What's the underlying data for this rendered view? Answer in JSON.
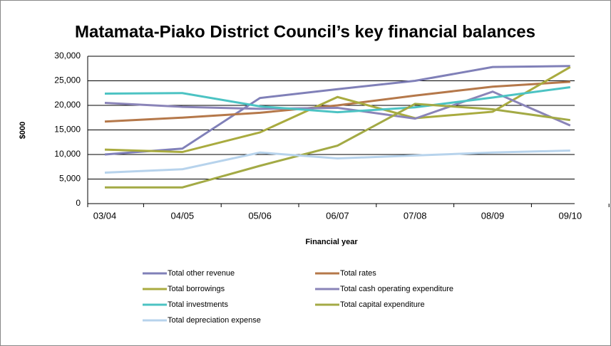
{
  "chart_data": {
    "type": "line",
    "title": "Matamata-Piako District Council’s key financial balances",
    "x_label": "Financial year",
    "y_label": "$000",
    "categories": [
      "03/04",
      "04/05",
      "05/06",
      "06/07",
      "07/08",
      "08/09",
      "09/10"
    ],
    "ylim": [
      0,
      30000
    ],
    "yticks": [
      0,
      {
        "value": 5000,
        "label": "5,000"
      },
      {
        "value": 10000,
        "label": "10,000"
      },
      {
        "value": 15000,
        "label": "15,000"
      },
      {
        "value": 20000,
        "label": "20,000"
      },
      {
        "value": 25000,
        "label": "25,000"
      },
      {
        "value": 30000,
        "label": "30,000"
      }
    ],
    "grid": true,
    "series": [
      {
        "name": "Total other revenue",
        "color": "#8080b8",
        "values": [
          10000,
          11200,
          21500,
          23300,
          25000,
          27800,
          28000
        ]
      },
      {
        "name": "Total rates",
        "color": "#b5784a",
        "values": [
          16700,
          17500,
          18500,
          20000,
          22000,
          23800,
          24800
        ]
      },
      {
        "name": "Total borrowings",
        "color": "#a9ab3f",
        "values": [
          11000,
          10500,
          14500,
          21700,
          17400,
          18700,
          27800
        ]
      },
      {
        "name": "Total cash operating expenditure",
        "color": "#8a84b8",
        "values": [
          20500,
          19700,
          19300,
          19500,
          17300,
          22800,
          15900
        ]
      },
      {
        "name": "Total investments",
        "color": "#4cc3c3",
        "values": [
          22400,
          22500,
          19800,
          18600,
          19600,
          21600,
          23700
        ]
      },
      {
        "name": "Total capital expenditure",
        "color": "#a3aa45",
        "values": [
          3300,
          3300,
          7700,
          11800,
          20300,
          19200,
          17000
        ]
      },
      {
        "name": "Total depreciation expense",
        "color": "#b7d3ec",
        "values": [
          6300,
          7000,
          10400,
          9200,
          9800,
          10400,
          10800
        ]
      }
    ]
  }
}
